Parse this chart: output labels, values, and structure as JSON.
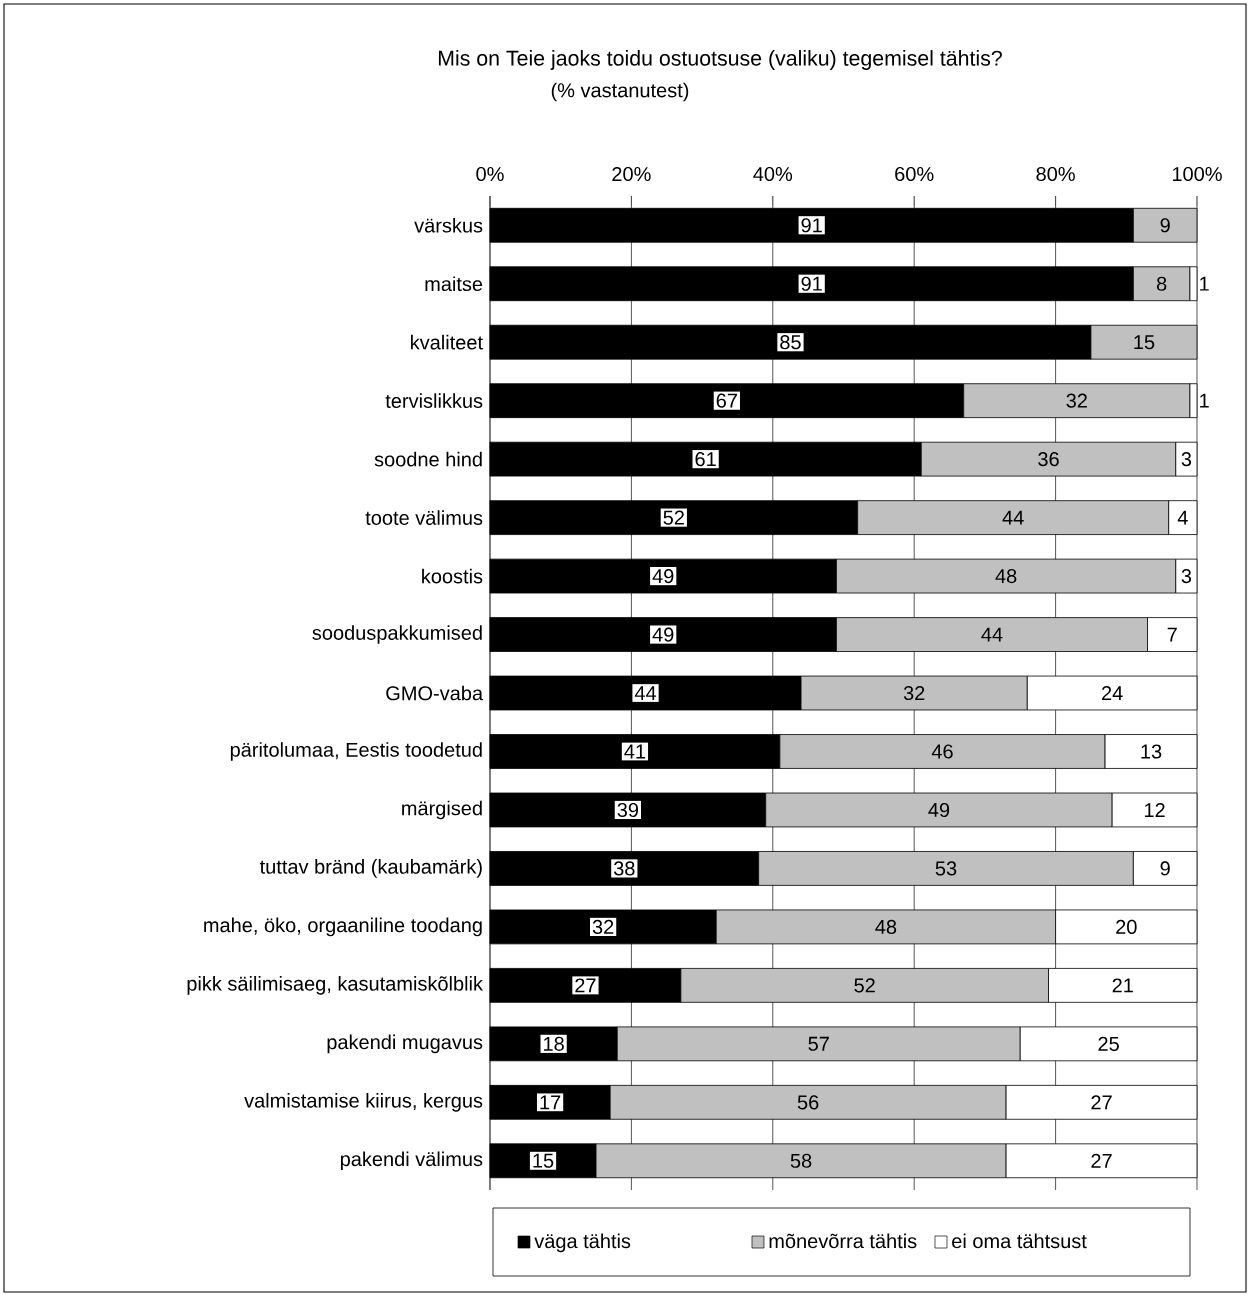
{
  "chart_data": {
    "type": "bar",
    "orientation": "horizontal",
    "stacked": true,
    "title": "Mis on Teie jaoks toidu ostuotsuse (valiku) tegemisel tähtis?",
    "subtitle": "(% vastanutest)",
    "categories": [
      "värskus",
      "maitse",
      "kvaliteet",
      "tervislikkus",
      "soodne hind",
      "toote välimus",
      "koostis",
      "sooduspakkumised",
      "GMO-vaba",
      "päritolumaa, Eestis toodetud",
      "märgised",
      "tuttav bränd (kaubamärk)",
      "mahe, öko, orgaaniline toodang",
      "pikk säilimisaeg, kasutamiskõlblik",
      "pakendi mugavus",
      "valmistamise kiirus, kergus",
      "pakendi välimus"
    ],
    "series": [
      {
        "name": "väga tähtis",
        "color": "#000000",
        "values": [
          91,
          91,
          85,
          67,
          61,
          52,
          49,
          49,
          44,
          41,
          39,
          38,
          32,
          27,
          18,
          17,
          15
        ]
      },
      {
        "name": "mõnevõrra tähtis",
        "color": "#c0c0c0",
        "values": [
          9,
          8,
          15,
          32,
          36,
          44,
          48,
          44,
          32,
          46,
          49,
          53,
          48,
          52,
          57,
          56,
          58
        ]
      },
      {
        "name": "ei oma tähtsust",
        "color": "#ffffff",
        "values": [
          null,
          1,
          null,
          1,
          3,
          4,
          3,
          7,
          24,
          13,
          12,
          9,
          20,
          21,
          25,
          27,
          27
        ]
      }
    ],
    "xlim": [
      0,
      100
    ],
    "xticks": [
      {
        "value": 0,
        "label": "0%"
      },
      {
        "value": 20,
        "label": "20%"
      },
      {
        "value": 40,
        "label": "40%"
      },
      {
        "value": 60,
        "label": "60%"
      },
      {
        "value": 80,
        "label": "80%"
      },
      {
        "value": 100,
        "label": "100%"
      }
    ],
    "grid": "x",
    "legend": "bottom",
    "data_labels": true
  }
}
